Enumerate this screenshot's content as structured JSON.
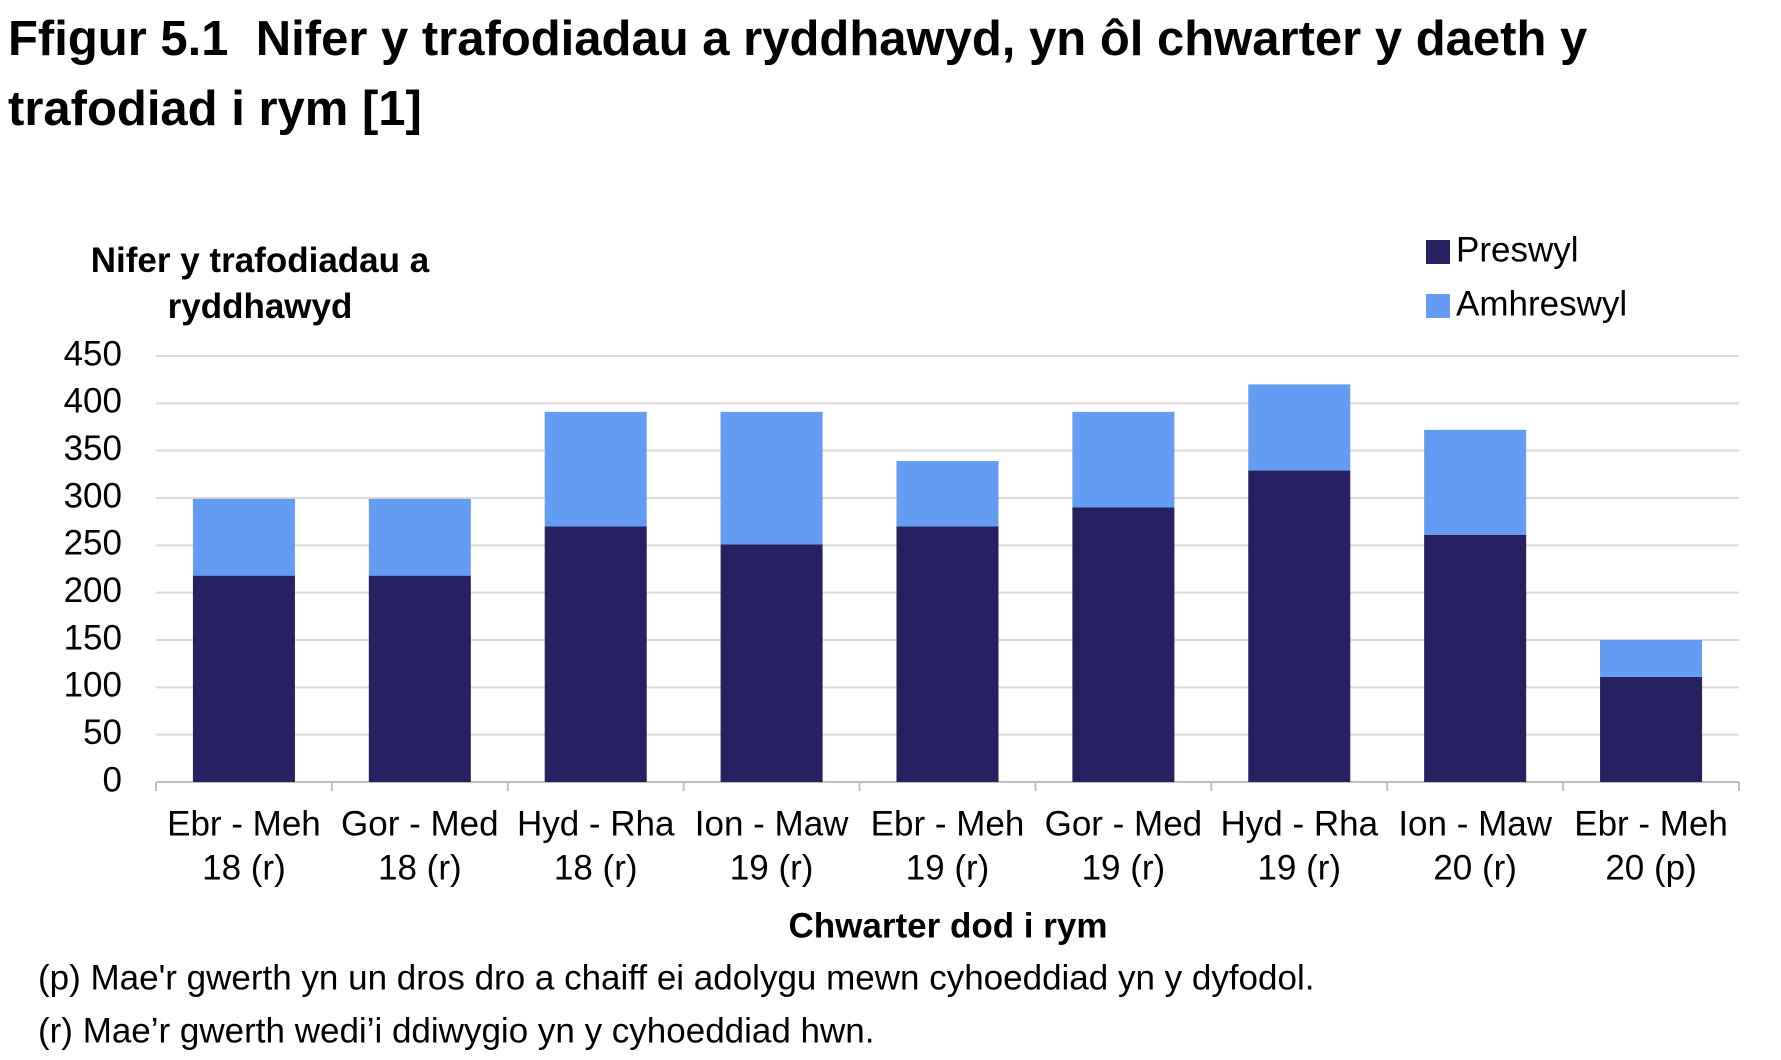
{
  "chart_data": {
    "type": "stacked_bar",
    "title": "Ffigur 5.1  Nifer y trafodiadau a ryddhawyd, yn ôl chwarter y daeth y trafodiad i rym [1]",
    "y_label": "Nifer y trafodiadau a ryddhawyd",
    "x_label": "Chwarter dod i rym",
    "categories": [
      [
        "Ebr - Meh",
        "18 (r)"
      ],
      [
        "Gor - Med",
        "18 (r)"
      ],
      [
        "Hyd - Rha",
        "18 (r)"
      ],
      [
        "Ion - Maw",
        "19 (r)"
      ],
      [
        "Ebr - Meh",
        "19 (r)"
      ],
      [
        "Gor - Med",
        "19 (r)"
      ],
      [
        "Hyd - Rha",
        "19 (r)"
      ],
      [
        "Ion - Maw",
        "20 (r)"
      ],
      [
        "Ebr - Meh",
        "20 (p)"
      ]
    ],
    "series": [
      {
        "name": "Preswyl",
        "color": "#262262",
        "values": [
          218,
          218,
          270,
          251,
          270,
          290,
          329,
          261,
          111
        ]
      },
      {
        "name": "Amhreswyl",
        "color": "#639cf2",
        "values": [
          81,
          81,
          121,
          140,
          69,
          101,
          91,
          111,
          39
        ]
      }
    ],
    "ylim": [
      0,
      450
    ],
    "yticks": [
      0,
      50,
      100,
      150,
      200,
      250,
      300,
      350,
      400,
      450
    ],
    "grid": true,
    "notes": [
      "(p) Mae'r gwerth yn un dros dro a chaiff ei adolygu mewn cyhoeddiad yn y dyfodol.",
      "(r) Mae’r gwerth wedi’i ddiwygio yn y cyhoeddiad hwn."
    ]
  }
}
